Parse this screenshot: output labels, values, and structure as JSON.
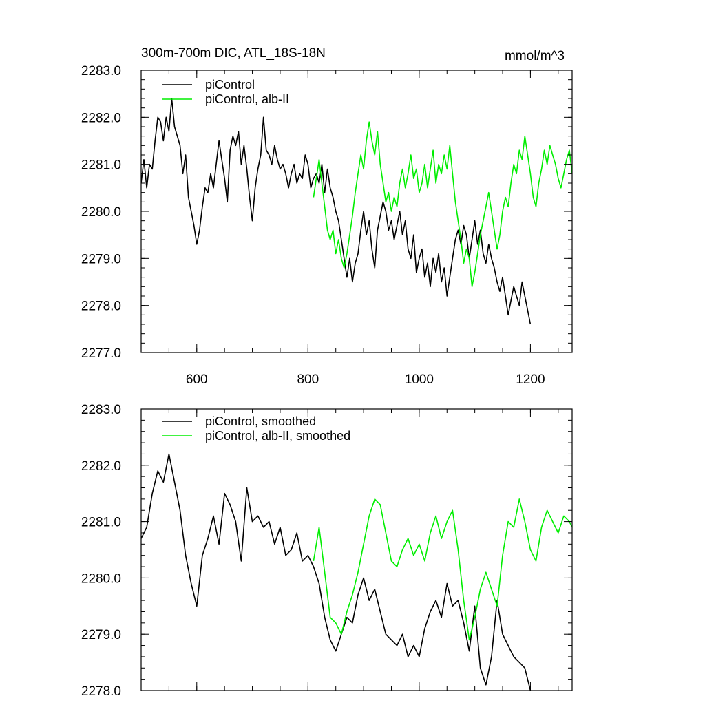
{
  "chart_data": [
    {
      "type": "line",
      "title": "300m-700m DIC, ATL_18S-18N",
      "units": "mmol/m^3",
      "xlim": [
        500,
        1275
      ],
      "ylim": [
        2277.0,
        2283.0
      ],
      "x_ticks": [
        600,
        800,
        1000,
        1200
      ],
      "x_tick_labels": [
        "600",
        "800",
        "1000",
        "1200"
      ],
      "y_ticks": [
        2277.0,
        2278.0,
        2279.0,
        2280.0,
        2281.0,
        2282.0,
        2283.0
      ],
      "y_tick_labels": [
        "2277.0",
        "2278.0",
        "2279.0",
        "2280.0",
        "2281.0",
        "2282.0",
        "2283.0"
      ],
      "legend": "top-left",
      "grid": false,
      "series": [
        {
          "name": "piControl",
          "color": "#000000",
          "x": [
            500,
            505,
            510,
            515,
            520,
            525,
            530,
            535,
            540,
            545,
            550,
            555,
            560,
            565,
            570,
            575,
            580,
            585,
            590,
            595,
            600,
            605,
            610,
            615,
            620,
            625,
            630,
            635,
            640,
            645,
            650,
            655,
            660,
            665,
            670,
            675,
            680,
            685,
            690,
            695,
            700,
            705,
            710,
            715,
            720,
            725,
            730,
            735,
            740,
            745,
            750,
            755,
            760,
            765,
            770,
            775,
            780,
            785,
            790,
            795,
            800,
            805,
            810,
            815,
            820,
            825,
            830,
            835,
            840,
            845,
            850,
            855,
            860,
            865,
            870,
            875,
            880,
            885,
            890,
            895,
            900,
            905,
            910,
            915,
            920,
            925,
            930,
            935,
            940,
            945,
            950,
            955,
            960,
            965,
            970,
            975,
            980,
            985,
            990,
            995,
            1000,
            1005,
            1010,
            1015,
            1020,
            1025,
            1030,
            1035,
            1040,
            1045,
            1050,
            1055,
            1060,
            1065,
            1070,
            1075,
            1080,
            1085,
            1090,
            1095,
            1100,
            1105,
            1110,
            1115,
            1120,
            1125,
            1130,
            1135,
            1140,
            1145,
            1150,
            1155,
            1160,
            1165,
            1170,
            1175,
            1180,
            1185,
            1190,
            1195,
            1200
          ],
          "values": [
            2280.6,
            2281.1,
            2280.5,
            2281.0,
            2280.9,
            2281.5,
            2282.0,
            2281.9,
            2281.5,
            2282.0,
            2281.7,
            2282.4,
            2281.8,
            2281.6,
            2281.4,
            2280.8,
            2281.2,
            2280.3,
            2280.0,
            2279.7,
            2279.3,
            2279.6,
            2280.1,
            2280.5,
            2280.4,
            2280.8,
            2280.5,
            2281.0,
            2281.5,
            2281.1,
            2280.7,
            2280.2,
            2281.3,
            2281.6,
            2281.4,
            2281.7,
            2281.0,
            2281.4,
            2280.9,
            2280.3,
            2279.8,
            2280.5,
            2280.9,
            2281.2,
            2282.0,
            2281.3,
            2281.2,
            2281.0,
            2281.4,
            2281.1,
            2280.9,
            2281.0,
            2280.8,
            2280.5,
            2280.8,
            2281.0,
            2280.6,
            2280.8,
            2280.7,
            2281.2,
            2281.0,
            2280.5,
            2280.7,
            2280.8,
            2280.6,
            2281.0,
            2280.4,
            2280.9,
            2280.5,
            2280.3,
            2280.0,
            2279.8,
            2279.4,
            2279.0,
            2278.6,
            2279.0,
            2278.5,
            2278.9,
            2279.1,
            2279.6,
            2280.0,
            2279.5,
            2279.8,
            2279.2,
            2278.8,
            2279.6,
            2279.9,
            2280.2,
            2280.0,
            2279.6,
            2279.8,
            2279.4,
            2279.7,
            2280.0,
            2279.5,
            2279.8,
            2279.2,
            2279.0,
            2279.5,
            2278.7,
            2279.0,
            2279.2,
            2278.6,
            2278.9,
            2278.4,
            2279.0,
            2278.7,
            2279.1,
            2278.5,
            2278.8,
            2278.2,
            2278.6,
            2279.0,
            2279.4,
            2279.6,
            2279.3,
            2279.7,
            2279.5,
            2279.0,
            2279.4,
            2279.8,
            2279.3,
            2279.6,
            2279.1,
            2278.9,
            2279.3,
            2279.0,
            2278.8,
            2278.5,
            2278.3,
            2278.6,
            2278.2,
            2277.8,
            2278.1,
            2278.4,
            2278.2,
            2278.0,
            2278.5,
            2278.2,
            2277.9,
            2277.6
          ]
        },
        {
          "name": "piControl, alb-II",
          "color": "#00ee00",
          "x": [
            810,
            815,
            820,
            825,
            830,
            835,
            840,
            845,
            850,
            855,
            860,
            865,
            870,
            875,
            880,
            885,
            890,
            895,
            900,
            905,
            910,
            915,
            920,
            925,
            930,
            935,
            940,
            945,
            950,
            955,
            960,
            965,
            970,
            975,
            980,
            985,
            990,
            995,
            1000,
            1005,
            1010,
            1015,
            1020,
            1025,
            1030,
            1035,
            1040,
            1045,
            1050,
            1055,
            1060,
            1065,
            1070,
            1075,
            1080,
            1085,
            1090,
            1095,
            1100,
            1105,
            1110,
            1115,
            1120,
            1125,
            1130,
            1135,
            1140,
            1145,
            1150,
            1155,
            1160,
            1165,
            1170,
            1175,
            1180,
            1185,
            1190,
            1195,
            1200,
            1205,
            1210,
            1215,
            1220,
            1225,
            1230,
            1235,
            1240,
            1245,
            1250,
            1255,
            1260,
            1265,
            1270,
            1275
          ],
          "values": [
            2280.3,
            2280.7,
            2281.1,
            2280.6,
            2280.1,
            2279.6,
            2279.4,
            2279.6,
            2279.1,
            2279.4,
            2279.0,
            2278.8,
            2279.1,
            2279.5,
            2279.9,
            2280.4,
            2280.8,
            2281.2,
            2280.9,
            2281.5,
            2281.9,
            2281.5,
            2281.2,
            2281.7,
            2281.0,
            2280.6,
            2280.2,
            2280.4,
            2280.0,
            2280.3,
            2280.1,
            2280.6,
            2280.9,
            2280.5,
            2280.8,
            2281.2,
            2280.7,
            2280.9,
            2280.4,
            2280.6,
            2281.0,
            2280.5,
            2280.9,
            2281.3,
            2280.6,
            2281.0,
            2280.8,
            2281.2,
            2280.9,
            2281.4,
            2280.8,
            2280.2,
            2279.8,
            2279.4,
            2278.9,
            2279.2,
            2279.0,
            2278.4,
            2278.7,
            2279.1,
            2279.5,
            2279.8,
            2280.1,
            2280.4,
            2280.0,
            2279.6,
            2279.2,
            2279.5,
            2280.0,
            2280.3,
            2280.1,
            2280.6,
            2281.0,
            2280.8,
            2281.3,
            2281.1,
            2281.6,
            2281.2,
            2280.8,
            2280.3,
            2280.1,
            2280.6,
            2280.9,
            2281.3,
            2281.0,
            2281.4,
            2281.2,
            2281.0,
            2280.7,
            2280.5,
            2280.8,
            2281.1,
            2281.3,
            2280.8
          ]
        }
      ]
    },
    {
      "type": "line",
      "xlim": [
        500,
        1275
      ],
      "ylim": [
        2278.0,
        2283.0
      ],
      "x_ticks": [
        600,
        800,
        1000,
        1200
      ],
      "y_ticks": [
        2278.0,
        2279.0,
        2280.0,
        2281.0,
        2282.0,
        2283.0
      ],
      "y_tick_labels": [
        "2278.0",
        "2279.0",
        "2280.0",
        "2281.0",
        "2282.0",
        "2283.0"
      ],
      "legend": "top-left",
      "grid": false,
      "series": [
        {
          "name": "piControl, smoothed",
          "color": "#000000",
          "x": [
            500,
            510,
            520,
            530,
            540,
            550,
            560,
            570,
            580,
            590,
            600,
            610,
            620,
            630,
            640,
            650,
            660,
            670,
            680,
            690,
            700,
            710,
            720,
            730,
            740,
            750,
            760,
            770,
            780,
            790,
            800,
            810,
            820,
            830,
            840,
            850,
            860,
            870,
            880,
            890,
            900,
            910,
            920,
            930,
            940,
            950,
            960,
            970,
            980,
            990,
            1000,
            1010,
            1020,
            1030,
            1040,
            1050,
            1060,
            1070,
            1080,
            1090,
            1100,
            1110,
            1120,
            1130,
            1140,
            1150,
            1160,
            1170,
            1180,
            1190,
            1200
          ],
          "values": [
            2280.7,
            2280.9,
            2281.5,
            2281.9,
            2281.7,
            2282.2,
            2281.7,
            2281.2,
            2280.4,
            2279.9,
            2279.5,
            2280.4,
            2280.7,
            2281.1,
            2280.6,
            2281.5,
            2281.3,
            2281.0,
            2280.3,
            2281.6,
            2281.0,
            2281.1,
            2280.9,
            2281.0,
            2280.6,
            2280.9,
            2280.4,
            2280.5,
            2280.8,
            2280.3,
            2280.4,
            2280.2,
            2279.9,
            2279.3,
            2278.9,
            2278.7,
            2279.0,
            2279.3,
            2279.2,
            2279.7,
            2280.0,
            2279.6,
            2279.8,
            2279.4,
            2279.0,
            2278.9,
            2278.8,
            2279.0,
            2278.6,
            2278.8,
            2278.6,
            2279.1,
            2279.4,
            2279.6,
            2279.3,
            2279.9,
            2279.5,
            2279.6,
            2279.2,
            2278.7,
            2279.5,
            2278.4,
            2278.1,
            2278.6,
            2279.6,
            2279.0,
            2278.8,
            2278.6,
            2278.5,
            2278.4,
            2278.0
          ]
        },
        {
          "name": "piControl, alb-II, smoothed",
          "color": "#00ee00",
          "x": [
            810,
            820,
            830,
            840,
            850,
            860,
            870,
            880,
            890,
            900,
            910,
            920,
            930,
            940,
            950,
            960,
            970,
            980,
            990,
            1000,
            1010,
            1020,
            1030,
            1040,
            1050,
            1060,
            1070,
            1080,
            1090,
            1100,
            1110,
            1120,
            1130,
            1140,
            1150,
            1160,
            1170,
            1180,
            1190,
            1200,
            1210,
            1220,
            1230,
            1240,
            1250,
            1260,
            1270,
            1275
          ],
          "values": [
            2280.3,
            2280.9,
            2280.1,
            2279.3,
            2279.2,
            2279.0,
            2279.4,
            2279.7,
            2280.1,
            2280.6,
            2281.1,
            2281.4,
            2281.3,
            2280.8,
            2280.3,
            2280.2,
            2280.5,
            2280.7,
            2280.4,
            2280.6,
            2280.3,
            2280.8,
            2281.1,
            2280.7,
            2281.0,
            2281.2,
            2280.5,
            2279.6,
            2278.9,
            2279.3,
            2279.8,
            2280.1,
            2279.8,
            2279.5,
            2280.4,
            2281.0,
            2280.9,
            2281.4,
            2281.0,
            2280.5,
            2280.3,
            2280.9,
            2281.2,
            2281.0,
            2280.8,
            2281.1,
            2281.0,
            2280.9
          ]
        }
      ]
    }
  ]
}
